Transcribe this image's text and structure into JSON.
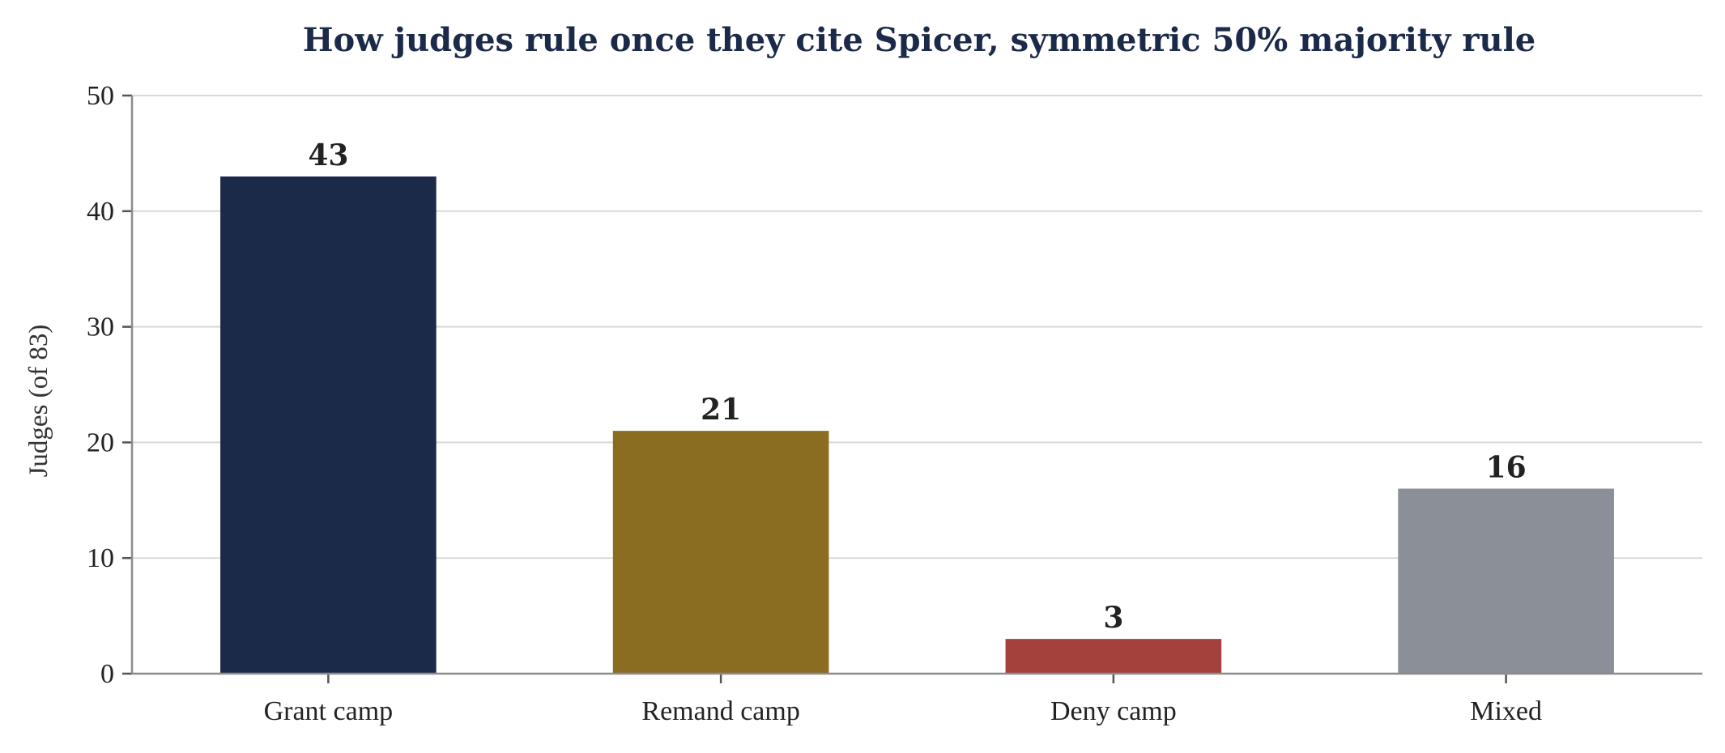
{
  "chart_data": {
    "type": "bar",
    "title": "How judges rule once they cite Spicer, symmetric 50% majority rule",
    "xlabel": "",
    "ylabel": "Judges (of 83)",
    "categories": [
      "Grant camp",
      "Remand camp",
      "Deny camp",
      "Mixed"
    ],
    "values": [
      43,
      21,
      3,
      16
    ],
    "colors": [
      "#1c2a4a",
      "#8a6d21",
      "#a5413c",
      "#8b8f98"
    ],
    "ylim": [
      0,
      50
    ],
    "yticks": [
      0,
      10,
      20,
      30,
      40,
      50
    ],
    "grid": "horizontal",
    "legend": "none"
  }
}
